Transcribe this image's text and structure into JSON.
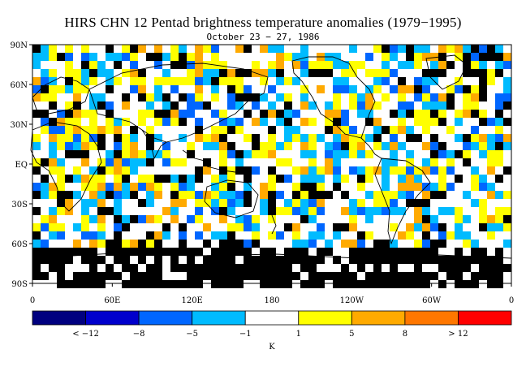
{
  "title": "HIRS CHN 12 Pentad brightness temperature anomalies (1979−1995)",
  "subtitle": "October 23 − 27, 1986",
  "lat_labels": [
    "90N",
    "60N",
    "30N",
    "EQ",
    "30S",
    "60S",
    "90S"
  ],
  "lon_labels": [
    "0",
    "60E",
    "120E",
    "180",
    "120W",
    "60W",
    "0"
  ],
  "colorbar": {
    "colors": [
      "#00007f",
      "#0000cc",
      "#0066ff",
      "#00bbff",
      "#ffffff",
      "#ffff00",
      "#ffaa00",
      "#ff7700",
      "#ff0000"
    ],
    "tick_labels": [
      "< −12",
      "−8",
      "−5",
      "−1",
      "1",
      "5",
      "8",
      "> 12"
    ],
    "unit": "K"
  },
  "map_colors": {
    "missing": "#000000",
    "coast": "#000000"
  }
}
